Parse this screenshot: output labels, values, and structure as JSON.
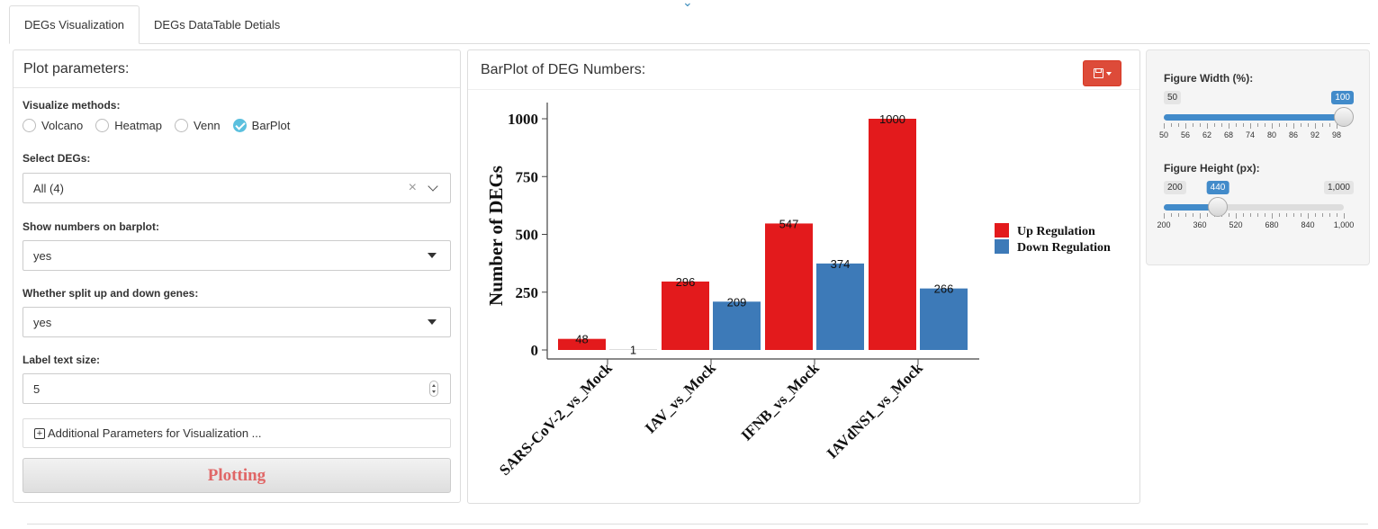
{
  "tabs": [
    {
      "label": "DEGs Visualization",
      "active": true
    },
    {
      "label": "DEGs DataTable Detials",
      "active": false
    }
  ],
  "left_panel": {
    "title": "Plot parameters:",
    "visualize_methods": {
      "label": "Visualize methods:",
      "options": [
        "Volcano",
        "Heatmap",
        "Venn",
        "BarPlot"
      ],
      "selected": "BarPlot"
    },
    "select_degs": {
      "label": "Select DEGs:",
      "value": "All (4)"
    },
    "show_numbers": {
      "label": "Show numbers on barplot:",
      "value": "yes"
    },
    "split_genes": {
      "label": "Whether split up and down genes:",
      "value": "yes"
    },
    "label_text_size": {
      "label": "Label text size:",
      "value": "5"
    },
    "additional_params": "Additional Parameters for Visualization ...",
    "plot_button": "Plotting"
  },
  "mid_panel": {
    "title": "BarPlot of DEG Numbers:"
  },
  "chart_data": {
    "type": "bar",
    "categories": [
      "SARS-CoV-2_vs_Mock",
      "IAV_vs_Mock",
      "IFNB_vs_Mock",
      "IAVdNS1_vs_Mock"
    ],
    "series": [
      {
        "name": "Up Regulation",
        "values": [
          48,
          296,
          547,
          1000
        ],
        "color": "#e31a1c"
      },
      {
        "name": "Down Regulation",
        "values": [
          1,
          209,
          374,
          266
        ],
        "color": "#3d7ab8"
      }
    ],
    "ylabel": "Number of DEGs",
    "xlabel": "",
    "ylim": [
      0,
      1000
    ],
    "yticks": [
      0,
      250,
      500,
      750,
      1000
    ],
    "legend_position": "right",
    "show_values": true,
    "grid": false
  },
  "right_panel": {
    "width_slider": {
      "label": "Figure Width (%):",
      "min": 50,
      "max": 100,
      "value": 100,
      "min_label": "50",
      "max_label": "100",
      "value_label": "100",
      "tick_labels": [
        "50",
        "56",
        "62",
        "68",
        "74",
        "80",
        "86",
        "92",
        "98"
      ]
    },
    "height_slider": {
      "label": "Figure Height (px):",
      "min": 200,
      "max": 1000,
      "value": 440,
      "min_label": "200",
      "max_label": "1,000",
      "value_label": "440",
      "tick_labels": [
        "200",
        "360",
        "520",
        "680",
        "840",
        "1,000"
      ]
    }
  },
  "colors": {
    "accent_blue": "#428bca",
    "danger_red": "#dd4b39",
    "plot_text_red": "#e06666",
    "radio_checked": "#5bc0de"
  },
  "icons": {
    "save": "floppy-icon",
    "expand": "plus-square-icon",
    "clear": "close-icon",
    "dropdown": "chevron-down-icon"
  }
}
